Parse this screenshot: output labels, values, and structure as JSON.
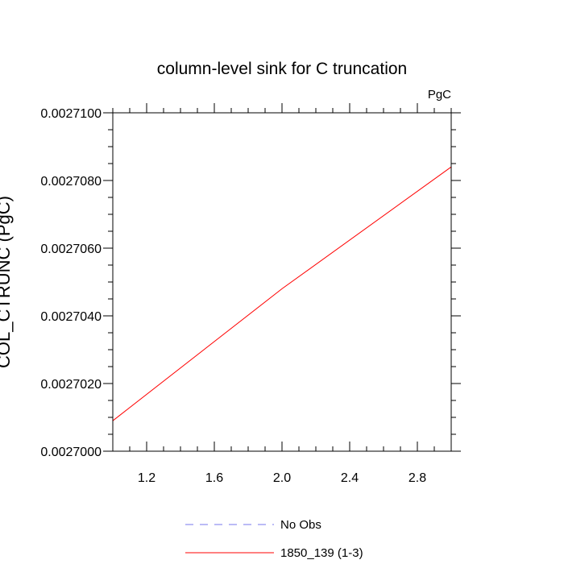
{
  "chart_data": {
    "type": "line",
    "title": "column-level sink for C truncation",
    "units": "PgC",
    "ylabel": "COL_CTRUNC (PgC)",
    "xlabel": "",
    "xlim": [
      1.0,
      3.0
    ],
    "ylim": [
      0.0027,
      0.00271
    ],
    "xticks": [
      1.2,
      1.6,
      2.0,
      2.4,
      2.8
    ],
    "xtick_labels": [
      "1.2",
      "1.6",
      "2.0",
      "2.4",
      "2.8"
    ],
    "yticks": [
      0.0027,
      0.002702,
      0.002704,
      0.002706,
      0.002708,
      0.00271
    ],
    "ytick_labels": [
      "0.0027000",
      "0.0027020",
      "0.0027040",
      "0.0027060",
      "0.0027080",
      "0.0027100"
    ],
    "grid": false,
    "legend_position": "bottom-center",
    "series": [
      {
        "name": "No Obs",
        "color": "#7777ee",
        "dash": "dashed",
        "x": [],
        "y": []
      },
      {
        "name": "1850_139 (1-3)",
        "color": "#ff0000",
        "dash": "solid",
        "x": [
          1,
          2,
          3
        ],
        "y": [
          0.0027009,
          0.0027048,
          0.0027084
        ]
      }
    ]
  }
}
